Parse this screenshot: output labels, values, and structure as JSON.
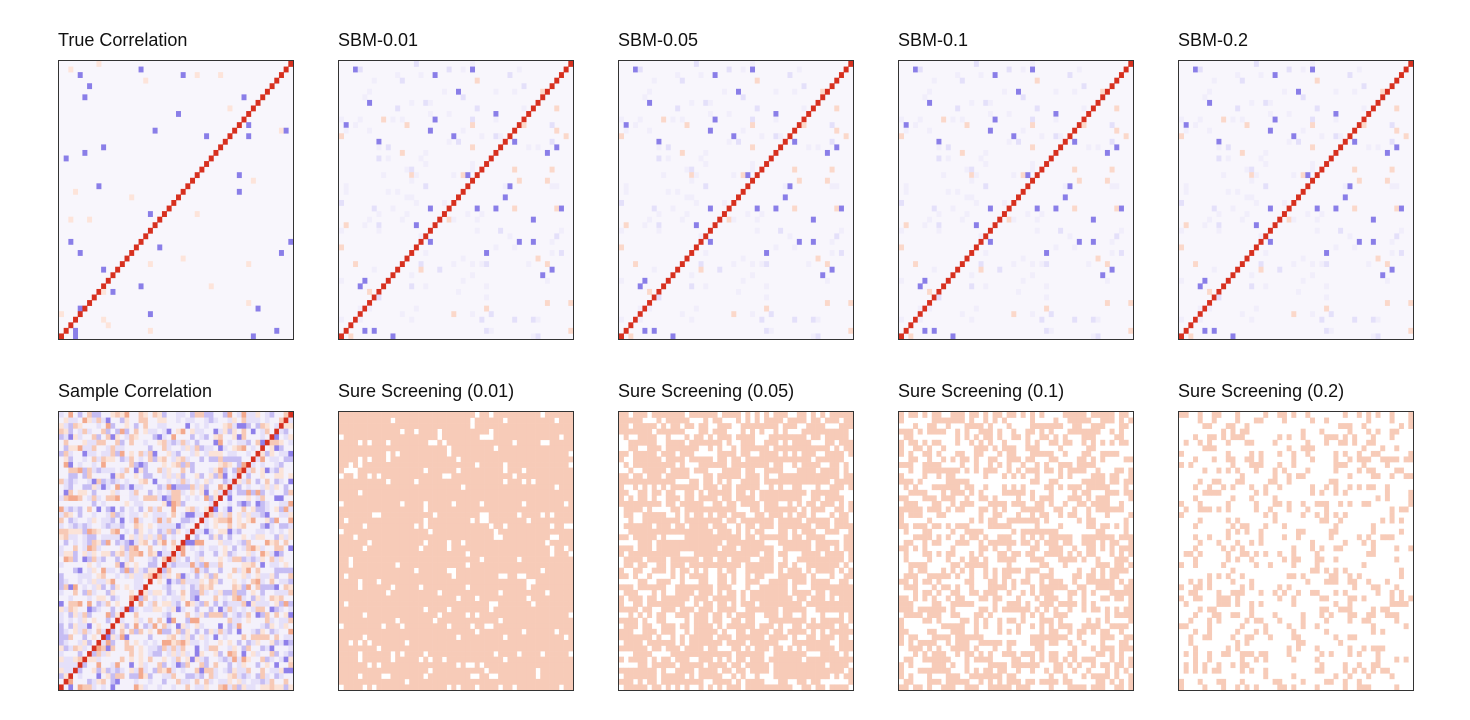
{
  "chart_data": [
    {
      "type": "heatmap",
      "title": "True Correlation",
      "grid_size": 50,
      "pattern": "true",
      "seed": 1,
      "colors": {
        "diagonal": "#d7301f",
        "negative": "#8a7ee8",
        "positive": "#f6b9a2",
        "background": "#f8f6fc"
      }
    },
    {
      "type": "heatmap",
      "title": "SBM-0.01",
      "grid_size": 50,
      "pattern": "sbm",
      "seed": 2,
      "colors": {
        "diagonal": "#d7301f",
        "negative": "#8a7ee8",
        "positive": "#f6b9a2",
        "background": "#f8f6fc"
      }
    },
    {
      "type": "heatmap",
      "title": "SBM-0.05",
      "grid_size": 50,
      "pattern": "sbm",
      "seed": 2,
      "colors": {
        "diagonal": "#d7301f",
        "negative": "#8a7ee8",
        "positive": "#f6b9a2",
        "background": "#f8f6fc"
      }
    },
    {
      "type": "heatmap",
      "title": "SBM-0.1",
      "grid_size": 50,
      "pattern": "sbm",
      "seed": 2,
      "colors": {
        "diagonal": "#d7301f",
        "negative": "#8a7ee8",
        "positive": "#f6b9a2",
        "background": "#f8f6fc"
      }
    },
    {
      "type": "heatmap",
      "title": "SBM-0.2",
      "grid_size": 50,
      "pattern": "sbm",
      "seed": 2,
      "colors": {
        "diagonal": "#d7301f",
        "negative": "#8a7ee8",
        "positive": "#f6b9a2",
        "background": "#f8f6fc"
      }
    },
    {
      "type": "heatmap",
      "title": "Sample Correlation",
      "grid_size": 50,
      "pattern": "sample",
      "seed": 7,
      "colors": {
        "diagonal": "#d7301f",
        "negative": "#8a7ee8",
        "positive": "#f6b9a2",
        "background": "#f8f6fc"
      }
    },
    {
      "type": "heatmap",
      "title": "Sure Screening (0.01)",
      "grid_size": 50,
      "pattern": "binary",
      "fill_fraction": 0.92,
      "seed": 11,
      "colors": {
        "fill": "#f7cbb8",
        "background": "#ffffff"
      }
    },
    {
      "type": "heatmap",
      "title": "Sure Screening (0.05)",
      "grid_size": 50,
      "pattern": "binary",
      "fill_fraction": 0.7,
      "seed": 13,
      "colors": {
        "fill": "#f7cbb8",
        "background": "#ffffff"
      }
    },
    {
      "type": "heatmap",
      "title": "Sure Screening (0.1)",
      "grid_size": 50,
      "pattern": "binary",
      "fill_fraction": 0.5,
      "seed": 17,
      "colors": {
        "fill": "#f7cbb8",
        "background": "#ffffff"
      }
    },
    {
      "type": "heatmap",
      "title": "Sure Screening (0.2)",
      "grid_size": 50,
      "pattern": "binary",
      "fill_fraction": 0.25,
      "seed": 19,
      "colors": {
        "fill": "#f7cbb8",
        "background": "#ffffff"
      }
    }
  ]
}
